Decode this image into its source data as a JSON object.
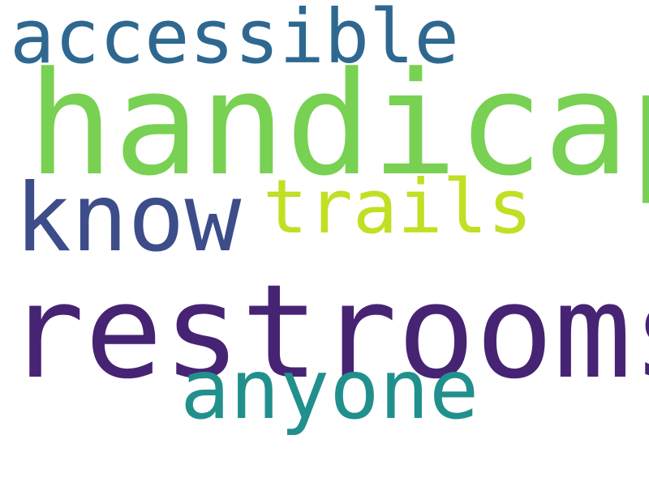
{
  "words": [
    {
      "id": "handicap",
      "text": "handicap",
      "color": "#78d152"
    },
    {
      "id": "restrooms",
      "text": "restrooms",
      "color": "#472374"
    },
    {
      "id": "accessible",
      "text": "accessible",
      "color": "#2e6890"
    },
    {
      "id": "know",
      "text": "know",
      "color": "#3d4d8a"
    },
    {
      "id": "trails",
      "text": "trails",
      "color": "#c2df23"
    },
    {
      "id": "anyone",
      "text": "anyone",
      "color": "#21908d"
    }
  ]
}
